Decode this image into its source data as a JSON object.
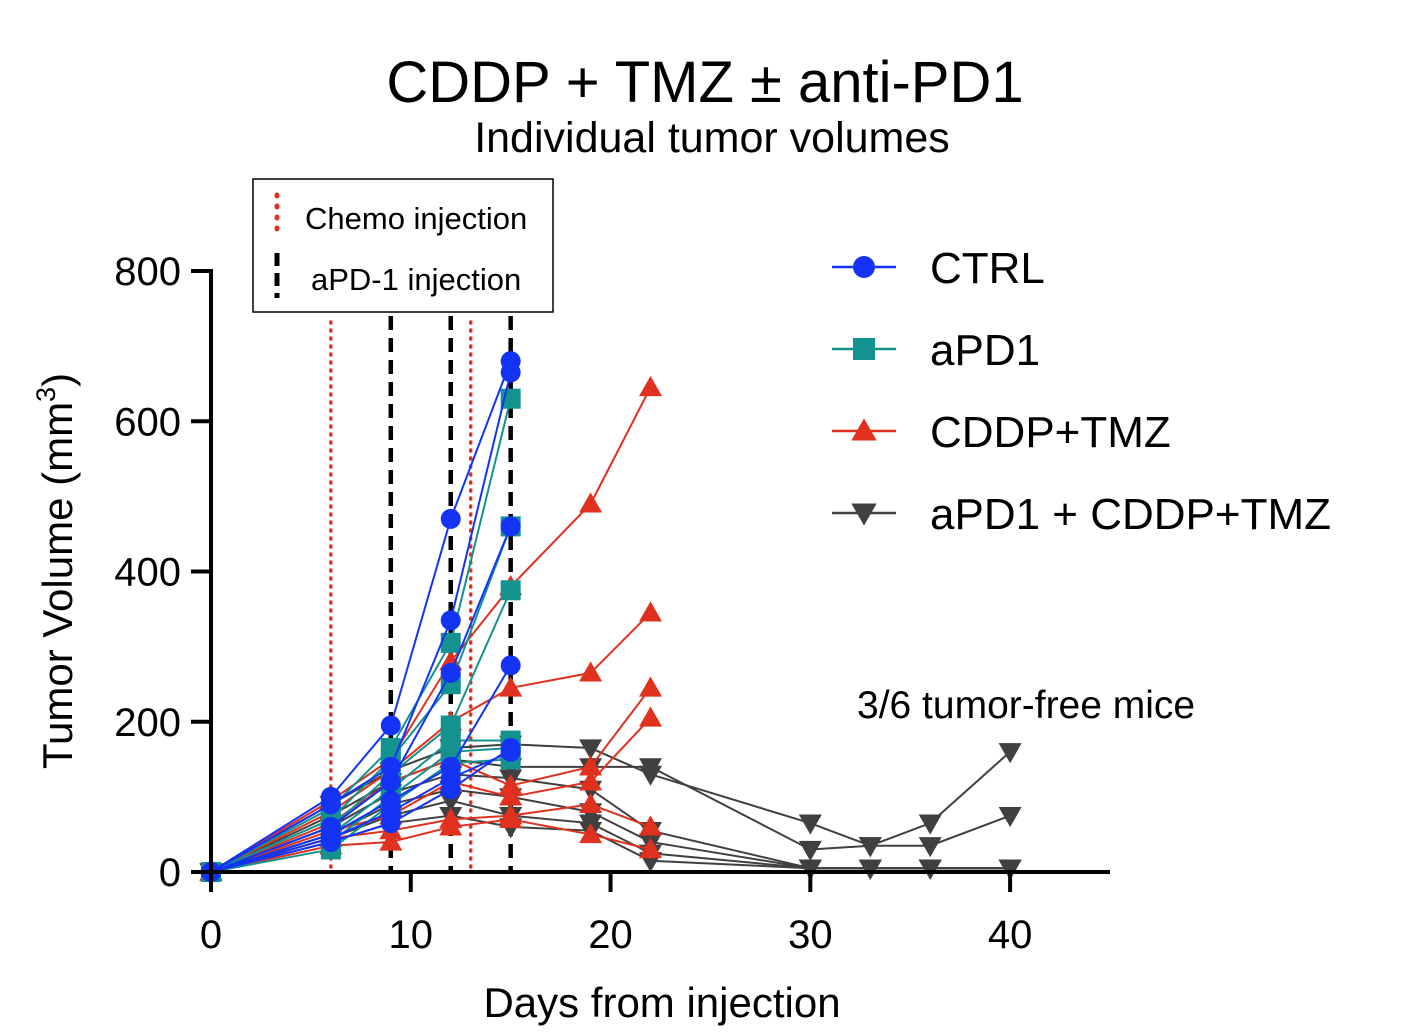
{
  "chart_data": {
    "type": "line",
    "title": "CDDP + TMZ ± anti-PD1",
    "subtitle": "Individual tumor volumes",
    "xlabel": "Days from injection",
    "ylabel_main": "Tumor Volume (mm",
    "ylabel_sup": "3",
    "ylabel_close": ")",
    "xlim": [
      0,
      45
    ],
    "ylim": [
      0,
      800
    ],
    "x_ticks": [
      0,
      10,
      20,
      30,
      40
    ],
    "y_ticks": [
      0,
      200,
      400,
      600,
      800
    ],
    "grid": false,
    "legend_position": "right",
    "injection_legend": {
      "chemo_label": "Chemo injection",
      "apd1_label": "aPD-1 injection",
      "chemo_color": "#e0301e",
      "apd1_color": "#000000"
    },
    "chemo_injection_days": [
      6,
      13
    ],
    "apd1_injection_days": [
      9,
      12,
      15
    ],
    "annotation": "3/6 tumor-free mice",
    "series": [
      {
        "name": "CTRL",
        "color": "#1433f5",
        "marker": "circle",
        "mice": [
          {
            "x": [
              0,
              6,
              9,
              12,
              15
            ],
            "y": [
              0,
              100,
              195,
              470,
              680
            ]
          },
          {
            "x": [
              0,
              6,
              9,
              12,
              15
            ],
            "y": [
              0,
              90,
              140,
              335,
              665
            ]
          },
          {
            "x": [
              0,
              6,
              9,
              12,
              15
            ],
            "y": [
              0,
              60,
              120,
              265,
              460
            ]
          },
          {
            "x": [
              0,
              6,
              9,
              12,
              15
            ],
            "y": [
              0,
              50,
              95,
              140,
              275
            ]
          },
          {
            "x": [
              0,
              6,
              9,
              12,
              15
            ],
            "y": [
              0,
              45,
              80,
              125,
              160
            ]
          },
          {
            "x": [
              0,
              6,
              9,
              12,
              15
            ],
            "y": [
              0,
              40,
              65,
              110,
              165
            ]
          }
        ]
      },
      {
        "name": "aPD1",
        "color": "#14928f",
        "marker": "square",
        "mice": [
          {
            "x": [
              0,
              6,
              9,
              12,
              15
            ],
            "y": [
              0,
              85,
              165,
              305,
              630
            ]
          },
          {
            "x": [
              0,
              6,
              9,
              12,
              15
            ],
            "y": [
              0,
              70,
              150,
              250,
              460
            ]
          },
          {
            "x": [
              0,
              6,
              9,
              12,
              15
            ],
            "y": [
              0,
              60,
              130,
              195,
              375
            ]
          },
          {
            "x": [
              0,
              6,
              9,
              12,
              15
            ],
            "y": [
              0,
              50,
              110,
              175,
              175
            ]
          },
          {
            "x": [
              0,
              6,
              9,
              12,
              15
            ],
            "y": [
              0,
              40,
              100,
              160,
              165
            ]
          },
          {
            "x": [
              0,
              6,
              9,
              12,
              15
            ],
            "y": [
              0,
              30,
              90,
              145,
              150
            ]
          }
        ]
      },
      {
        "name": "CDDP+TMZ",
        "color": "#e0301e",
        "marker": "triangle-up",
        "mice": [
          {
            "x": [
              0,
              6,
              9,
              12,
              15,
              19,
              22
            ],
            "y": [
              0,
              95,
              150,
              280,
              380,
              490,
              645
            ]
          },
          {
            "x": [
              0,
              6,
              9,
              12,
              15,
              19,
              22
            ],
            "y": [
              0,
              80,
              135,
              200,
              245,
              265,
              345
            ]
          },
          {
            "x": [
              0,
              6,
              9,
              12,
              15,
              19,
              22
            ],
            "y": [
              0,
              65,
              120,
              150,
              115,
              140,
              245
            ]
          },
          {
            "x": [
              0,
              6,
              9,
              12,
              15,
              19,
              22
            ],
            "y": [
              0,
              55,
              75,
              120,
              100,
              120,
              205
            ]
          },
          {
            "x": [
              0,
              6,
              9,
              12,
              15,
              19,
              22
            ],
            "y": [
              0,
              45,
              55,
              70,
              75,
              90,
              60
            ]
          },
          {
            "x": [
              0,
              6,
              9,
              12,
              15,
              19,
              22
            ],
            "y": [
              0,
              35,
              40,
              60,
              70,
              50,
              30
            ]
          }
        ]
      },
      {
        "name": "aPD1 + CDDP+TMZ",
        "color": "#404040",
        "marker": "triangle-down",
        "mice": [
          {
            "x": [
              0,
              6,
              9,
              12,
              15,
              19,
              22,
              30,
              33,
              36,
              40
            ],
            "y": [
              0,
              90,
              135,
              165,
              170,
              165,
              130,
              65,
              35,
              65,
              160
            ]
          },
          {
            "x": [
              0,
              6,
              9,
              12,
              15,
              19,
              22,
              30,
              33,
              36,
              40
            ],
            "y": [
              0,
              75,
              120,
              150,
              140,
              140,
              140,
              30,
              35,
              35,
              75
            ]
          },
          {
            "x": [
              0,
              6,
              9,
              12,
              15,
              19,
              22,
              30,
              33,
              36,
              40
            ],
            "y": [
              0,
              60,
              105,
              130,
              125,
              110,
              55,
              5,
              5,
              5,
              5
            ]
          },
          {
            "x": [
              0,
              6,
              9,
              12,
              15,
              19,
              22,
              30,
              33,
              36,
              40
            ],
            "y": [
              0,
              50,
              90,
              110,
              100,
              80,
              40,
              5,
              5,
              5,
              5
            ]
          },
          {
            "x": [
              0,
              6,
              9,
              12,
              15,
              19,
              22,
              30,
              33,
              36,
              40
            ],
            "y": [
              0,
              45,
              75,
              95,
              75,
              65,
              25,
              5,
              5,
              5,
              5
            ]
          },
          {
            "x": [
              0,
              6,
              9,
              12,
              15,
              19,
              22,
              30,
              33,
              36,
              40
            ],
            "y": [
              0,
              40,
              65,
              75,
              60,
              55,
              15,
              5,
              5,
              5,
              5
            ]
          }
        ]
      }
    ]
  }
}
